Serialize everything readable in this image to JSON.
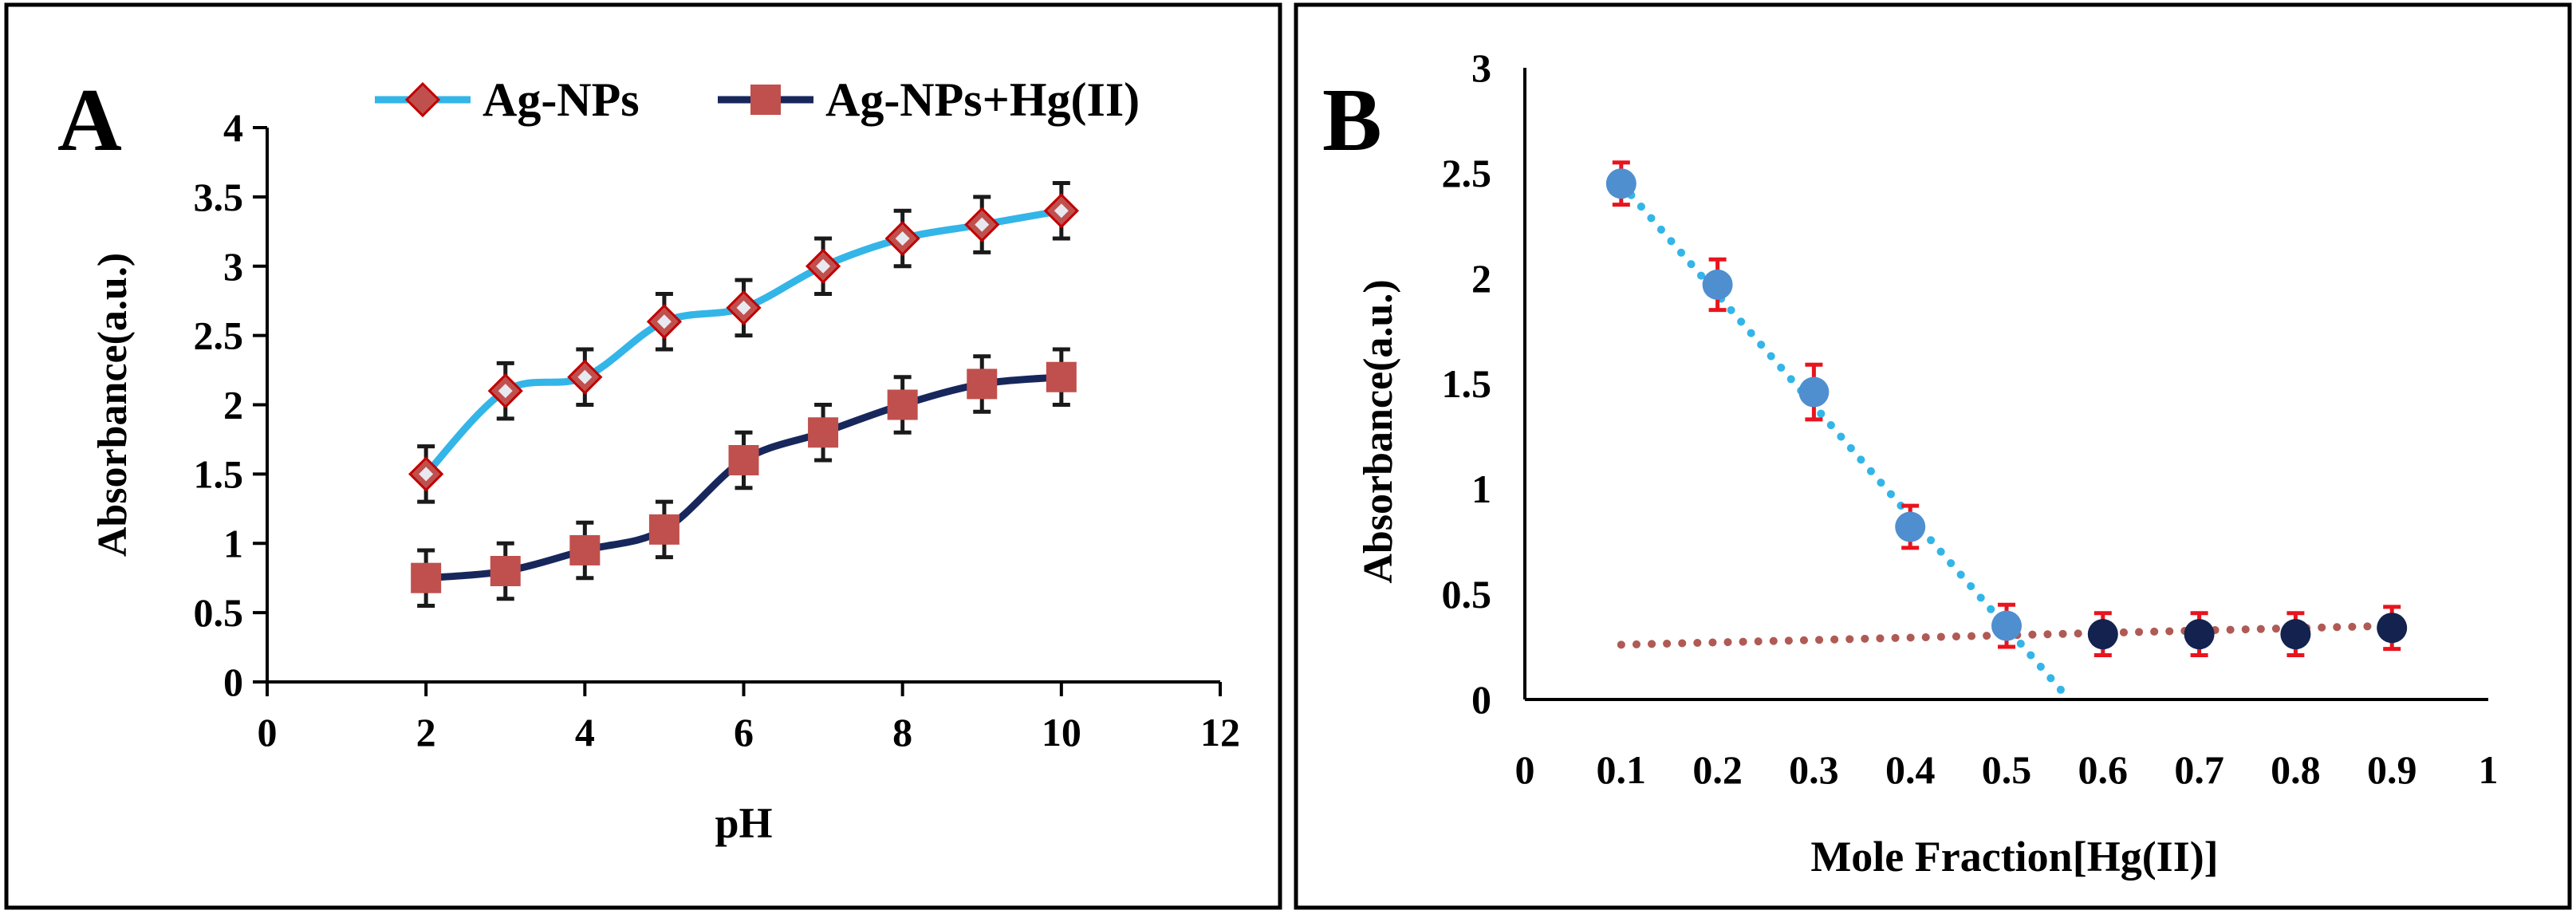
{
  "chart_data": [
    {
      "panel_label": "A",
      "type": "line",
      "xlabel": "pH",
      "ylabel": "Absorbance(a.u.)",
      "xlim": [
        0,
        12
      ],
      "ylim": [
        0,
        4
      ],
      "x_ticks": [
        0,
        2,
        4,
        6,
        8,
        10,
        12
      ],
      "y_ticks": [
        0,
        0.5,
        1,
        1.5,
        2,
        2.5,
        3,
        3.5,
        4
      ],
      "x_tick_labels": [
        "0",
        "2",
        "4",
        "6",
        "8",
        "10",
        "12"
      ],
      "y_tick_labels": [
        "0",
        "0.5",
        "1",
        "1.5",
        "2",
        "2.5",
        "3",
        "3.5",
        "4"
      ],
      "grid": false,
      "legend_position": "top",
      "series": [
        {
          "name": "Ag-NPs",
          "marker": "diamond",
          "line_color": "#33b5e8",
          "marker_fill": "#c0504d",
          "marker_edge": "#c00000",
          "x": [
            2,
            3,
            4,
            5,
            6,
            7,
            8,
            9,
            10
          ],
          "y": [
            1.5,
            2.1,
            2.2,
            2.6,
            2.7,
            3.0,
            3.2,
            3.3,
            3.4
          ],
          "error": [
            0.2,
            0.2,
            0.2,
            0.2,
            0.2,
            0.2,
            0.2,
            0.2,
            0.2
          ]
        },
        {
          "name": "Ag-NPs+Hg(II)",
          "marker": "square",
          "line_color": "#17275c",
          "marker_fill": "#c0504d",
          "marker_edge": "#c0504d",
          "x": [
            2,
            3,
            4,
            5,
            6,
            7,
            8,
            9,
            10
          ],
          "y": [
            0.75,
            0.8,
            0.95,
            1.1,
            1.6,
            1.8,
            2.0,
            2.15,
            2.2
          ],
          "error": [
            0.2,
            0.2,
            0.2,
            0.2,
            0.2,
            0.2,
            0.2,
            0.2,
            0.2
          ]
        }
      ]
    },
    {
      "panel_label": "B",
      "type": "scatter",
      "xlabel": "Mole Fraction[Hg(II)]",
      "ylabel": "Absorbance(a.u.)",
      "xlim": [
        0,
        1
      ],
      "ylim": [
        0,
        3
      ],
      "x_ticks": [
        0,
        0.1,
        0.2,
        0.3,
        0.4,
        0.5,
        0.6,
        0.7,
        0.8,
        0.9,
        1
      ],
      "y_ticks": [
        0,
        0.5,
        1,
        1.5,
        2,
        2.5,
        3
      ],
      "x_tick_labels": [
        "0",
        "0.1",
        "0.2",
        "0.3",
        "0.4",
        "0.5",
        "0.6",
        "0.7",
        "0.8",
        "0.9",
        "1"
      ],
      "y_tick_labels": [
        "0",
        "0.5",
        "1",
        "1.5",
        "2",
        "2.5",
        "3"
      ],
      "grid": false,
      "series": [
        {
          "marker": "circle",
          "fill": "#4f8fd0",
          "x": [
            0.1,
            0.2,
            0.3,
            0.4,
            0.5
          ],
          "y": [
            2.45,
            1.97,
            1.46,
            0.82,
            0.35
          ],
          "error": [
            0.1,
            0.12,
            0.13,
            0.1,
            0.1
          ],
          "error_color": "#e8141e"
        },
        {
          "marker": "circle",
          "fill": "#13224f",
          "x": [
            0.6,
            0.7,
            0.8,
            0.9
          ],
          "y": [
            0.31,
            0.31,
            0.31,
            0.34
          ],
          "error": [
            0.1,
            0.1,
            0.1,
            0.1
          ],
          "error_color": "#e8141e"
        }
      ],
      "trendlines": [
        {
          "style": "dotted",
          "color": "#33b5e8",
          "x": [
            0.1,
            0.565
          ],
          "y": [
            2.45,
            0.0
          ]
        },
        {
          "style": "dotted",
          "color": "#b05a55",
          "x": [
            0.1,
            0.9
          ],
          "y": [
            0.26,
            0.35
          ]
        }
      ]
    }
  ]
}
